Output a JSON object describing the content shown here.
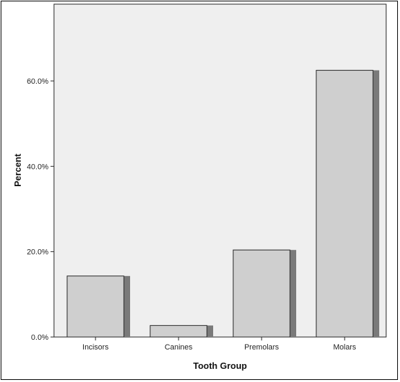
{
  "chart_data": {
    "type": "bar",
    "title": "",
    "xlabel": "Tooth Group",
    "ylabel": "Percent",
    "categories": [
      "Incisors",
      "Canines",
      "Premolars",
      "Molars"
    ],
    "values": [
      14.3,
      2.7,
      20.4,
      62.5
    ],
    "ylim": [
      0,
      78
    ],
    "yticks": [
      0,
      20,
      40,
      60
    ],
    "ytick_labels": [
      "0.0%",
      "20.0%",
      "40.0%",
      "60.0%"
    ],
    "grid": false,
    "legend": "none",
    "colors": {
      "plot_background": "#efefef",
      "bar_fill": "#cfcfcf",
      "bar_stroke": "#222222",
      "bar_shadow": "#7a7a7a"
    }
  }
}
